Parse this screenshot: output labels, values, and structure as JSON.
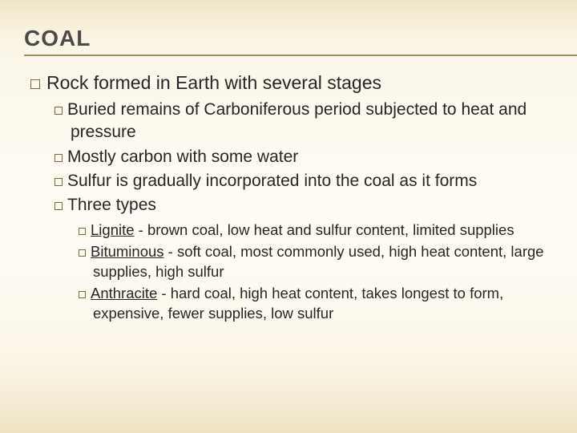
{
  "colors": {
    "text": "#262626",
    "title": "#4a4a4a",
    "bullet_border": "#7a6a3e",
    "underline": "#a08e5f",
    "bg_top": "#f0e4c4",
    "bg_mid": "#fefcf4",
    "bg_bottom": "#eee2c2"
  },
  "fonts": {
    "family": "Arial",
    "title_size_pt": 21,
    "lvl1_size_pt": 17,
    "lvl2_size_pt": 16,
    "lvl3_size_pt": 14
  },
  "title": "COAL",
  "lvl1": {
    "text": "Rock formed in Earth with several stages"
  },
  "lvl2": [
    {
      "text": "Buried remains of Carboniferous period subjected to heat and pressure"
    },
    {
      "text": "Mostly carbon with some water"
    },
    {
      "text": "Sulfur is gradually incorporated into the coal as it forms"
    },
    {
      "text": "Three types"
    }
  ],
  "lvl3": [
    {
      "term": "Lignite",
      "rest": " - brown coal, low heat and sulfur content, limited supplies"
    },
    {
      "term": "Bituminous",
      "rest": " - soft coal, most commonly used, high heat content, large supplies, high sulfur"
    },
    {
      "term": "Anthracite",
      "rest": " - hard coal, high heat content, takes longest to form, expensive, fewer supplies, low sulfur"
    }
  ]
}
